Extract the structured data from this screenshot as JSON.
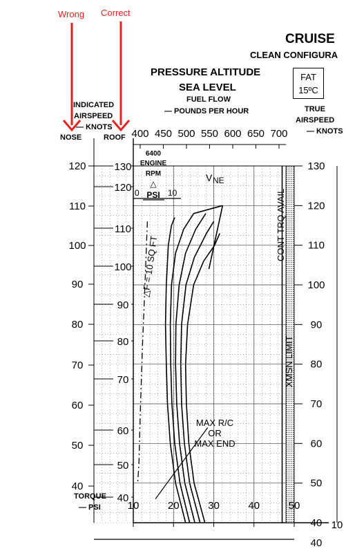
{
  "annotations": {
    "wrong_label": "Wrong",
    "correct_label": "Correct",
    "arrow_color": "#e8211c"
  },
  "header": {
    "title": "CRUISE",
    "subtitle": "CLEAN CONFIGURA",
    "altitude_line1": "PRESSURE ALTITUDE",
    "altitude_line2": "SEA LEVEL",
    "fuel_line1": "FUEL FLOW",
    "fuel_line2": "— POUNDS PER HOUR",
    "fat_label": "FAT",
    "fat_value": "15ºC"
  },
  "left_header": {
    "indicated_line1": "INDICATED",
    "indicated_line2": "AIRSPEED",
    "indicated_line3": "— KNOTS",
    "nose": "NOSE",
    "roof": "ROOF"
  },
  "right_header": {
    "line1": "TRUE",
    "line2": "AIRSPEED",
    "line3": "— KNOTS"
  },
  "chart_labels": {
    "engine_rpm_1": "6400",
    "engine_rpm_2": "ENGINE",
    "engine_rpm_3": "RPM",
    "delta_psi": "PSI",
    "delta_zero": "0",
    "delta_ten": "10",
    "vne": "V",
    "vne_sub": "NE",
    "delta_f": "△F = 10 SQ FT",
    "cont_trq": "CONT TRQ AVAIL",
    "xmsn": "XMSN LIMIT",
    "max_rc_1": "MAX R/C",
    "max_rc_2": "OR",
    "max_rc_3": "MAX END",
    "torque_line1": "TORQUE",
    "torque_line2": "— PSI"
  },
  "chart_data": {
    "type": "line",
    "fuel_flow_ticks": [
      "400",
      "450",
      "500",
      "550",
      "600",
      "650",
      "700"
    ],
    "torque_ticks": [
      "10",
      "20",
      "30",
      "40",
      "50"
    ],
    "nose_ticks": [
      "120",
      "110",
      "100",
      "90",
      "80",
      "70",
      "60",
      "50",
      "40"
    ],
    "roof_ticks": [
      "130",
      "120",
      "110",
      "100",
      "90",
      "80",
      "70",
      "60",
      "50",
      "40"
    ],
    "true_airspeed_ticks": [
      "130",
      "120",
      "110",
      "100",
      "90",
      "80",
      "70",
      "60",
      "50",
      "40"
    ],
    "right_partial_ticks": [
      "10"
    ],
    "bottom_right_tick": "40",
    "xlim_torque": [
      10,
      50
    ],
    "ylim_true_airspeed": [
      40,
      130
    ],
    "grid": true,
    "series": [
      {
        "x": [
          23.0,
          20.5,
          19.2,
          18.5,
          18.2,
          18.0,
          18.2,
          18.7,
          19.5,
          20.3
        ],
        "y": [
          40,
          50,
          60,
          70,
          80,
          90,
          100,
          110,
          115,
          117
        ]
      },
      {
        "x": [
          24.0,
          21.6,
          20.3,
          19.6,
          19.3,
          19.2,
          19.5,
          20.5,
          22.5,
          25.0
        ],
        "y": [
          40,
          50,
          60,
          70,
          80,
          90,
          100,
          108,
          114,
          118
        ]
      },
      {
        "x": [
          25.3,
          22.8,
          21.5,
          20.8,
          20.5,
          20.6,
          21.4,
          23.0,
          25.5,
          28.0
        ],
        "y": [
          40,
          50,
          60,
          70,
          80,
          90,
          100,
          108,
          114,
          118
        ]
      },
      {
        "x": [
          26.6,
          24.0,
          22.7,
          22.0,
          21.8,
          22.0,
          23.1,
          25.2,
          28.2,
          30.0
        ],
        "y": [
          40,
          50,
          60,
          70,
          80,
          90,
          100,
          107,
          113,
          116
        ]
      },
      {
        "x": [
          27.8,
          25.1,
          23.8,
          23.2,
          23.0,
          23.5,
          25.0,
          27.5,
          30.2,
          31.5
        ],
        "y": [
          40,
          50,
          60,
          70,
          80,
          90,
          100,
          106,
          110,
          113
        ]
      }
    ],
    "vne_line": {
      "x": [
        32.2,
        28.8
      ],
      "y": [
        120,
        104
      ]
    },
    "delta_f_line": {
      "x": [
        13.5,
        12.9,
        12.3,
        11.8,
        11.4,
        11.1
      ],
      "y": [
        116,
        100,
        85,
        70,
        55,
        50
      ]
    },
    "max_rc_line": {
      "x": [
        15.5,
        28.5
      ],
      "y": [
        46,
        64
      ]
    },
    "cont_trq_torque": 47.0,
    "xmsn_limit_torque": 48.3
  }
}
